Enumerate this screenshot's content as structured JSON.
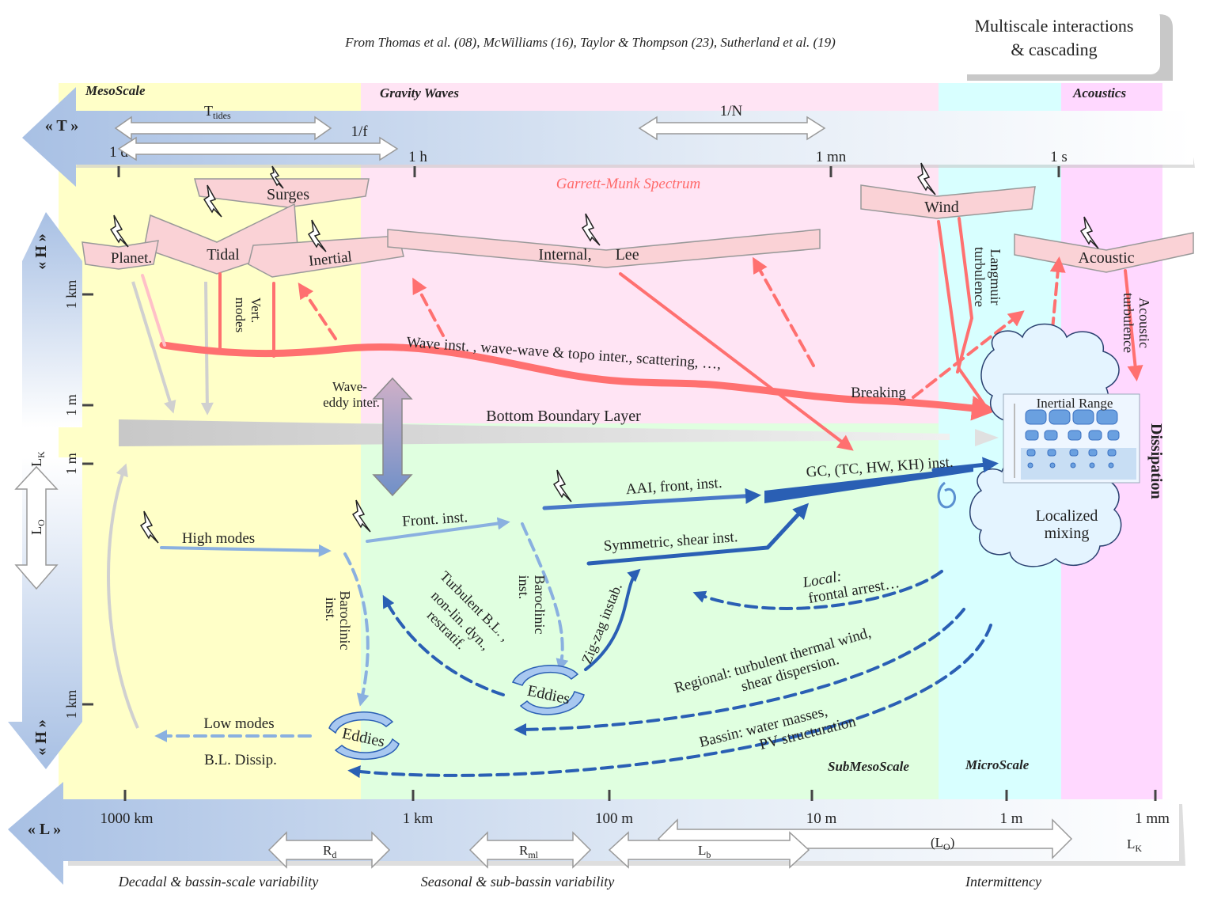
{
  "header": {
    "sources": "From Thomas et al. (08),  McWilliams (16), Taylor & Thompson (23), Sutherland et al. (19)",
    "title_line1": "Multiscale interactions",
    "title_line2": "& cascading"
  },
  "regimes": {
    "mesoscale": "MesoScale",
    "gravity_waves": "Gravity Waves",
    "acoustics": "Acoustics",
    "submesoscale": "SubMesoScale",
    "microscale": "MicroScale",
    "dissipation": "Dissipation"
  },
  "time_axis": {
    "label": "« T »",
    "ticks": [
      "1 d",
      "1 h",
      "1 mn",
      "1 s"
    ],
    "t_tides": "T",
    "t_tides_sub": "tides",
    "inv_f": "1/f",
    "inv_n": "1/N"
  },
  "length_axis": {
    "label": "« L »",
    "ticks": [
      "1000 km",
      "1 km",
      "100 m",
      "10 m",
      "1 m",
      "1 mm"
    ],
    "rd": "R",
    "rd_sub": "d",
    "rml": "R",
    "rml_sub": "ml",
    "lb": "L",
    "lb_sub": "b",
    "lo_paren": "(L",
    "lo_paren_sub": "O",
    "lo_paren_close": ")",
    "lk": "L",
    "lk_sub": "K",
    "var_decadal": "Decadal & bassin-scale variability",
    "var_seasonal": "Seasonal & sub-bassin variability",
    "var_intermittency": "Intermittency"
  },
  "depth_axis": {
    "label_top": "« H »",
    "label_bottom": "« H »",
    "tick_1km_top": "1 km",
    "tick_1m_top": "1 m",
    "tick_1m_bottom": "1 m",
    "tick_1km_bottom": "1 km",
    "lk": "L",
    "lk_sub": "K",
    "lo": "L",
    "lo_sub": "O"
  },
  "forcings": {
    "surges": "Surges",
    "planet": "Planet.",
    "tidal": "Tidal",
    "inertial": "Inertial",
    "internal_lee": "Internal,      Lee",
    "wind": "Wind",
    "acoustic": "Acoustic"
  },
  "labels": {
    "garrett_munk": "Garrett-Munk Spectrum",
    "vert_modes_1": "Vert.",
    "vert_modes_2": "modes",
    "wave_inst": "Wave inst. , wave-wave & topo inter., scattering, …,",
    "wave_eddy_1": "Wave-",
    "wave_eddy_2": "eddy inter.",
    "breaking": "Breaking",
    "langmuir_1": "Langmuir",
    "langmuir_2": "turbulence",
    "acoustic_turb_1": "Acoustic",
    "acoustic_turb_2": "turbulence",
    "inertial_range": "Inertial Range",
    "bbl": "Bottom Boundary Layer",
    "gc_inst": "GC, (TC, HW, KH) inst.",
    "aai": "AAI, front, inst.",
    "front_inst": "Front. inst.",
    "symmetric": "Symmetric, shear inst.",
    "high_modes": "High modes",
    "localized_1": "Localized",
    "localized_2": "mixing",
    "baroclinic_a_1": "Baroclinic",
    "baroclinic_a_2": "inst.",
    "baroclinic_b_1": "Baroclinic",
    "baroclinic_b_2": "inst.",
    "turbulent_1": "Turbulent B.L. ,",
    "turbulent_2": "non-lin. dyn.,",
    "turbulent_3": "restratif.",
    "zigzag": "Zig-zag instab.",
    "local_1": "Local:",
    "local_2": "frontal arrest…",
    "regional_1": "Regional: turbulent thermal wind,",
    "regional_2": "shear dispersion.",
    "bassin_1": "Bassin: water masses,",
    "bassin_2": "PV structuration",
    "eddies_1": "Eddies",
    "eddies_2": "Eddies",
    "low_modes": "Low modes",
    "bl_dissip": "B.L. Dissip."
  },
  "colors": {
    "meso_bg": "#ffffc8",
    "gravity_bg": "#ffe4f4",
    "sub_bg": "#e0ffe0",
    "micro_bg": "#d8ffff",
    "acoustic_bg": "#ffd8ff",
    "wave_red": "#ff7070",
    "flow_blue": "#2a5fb4",
    "light_blue": "#8ab0e0",
    "grey": "#d0d0d0"
  }
}
